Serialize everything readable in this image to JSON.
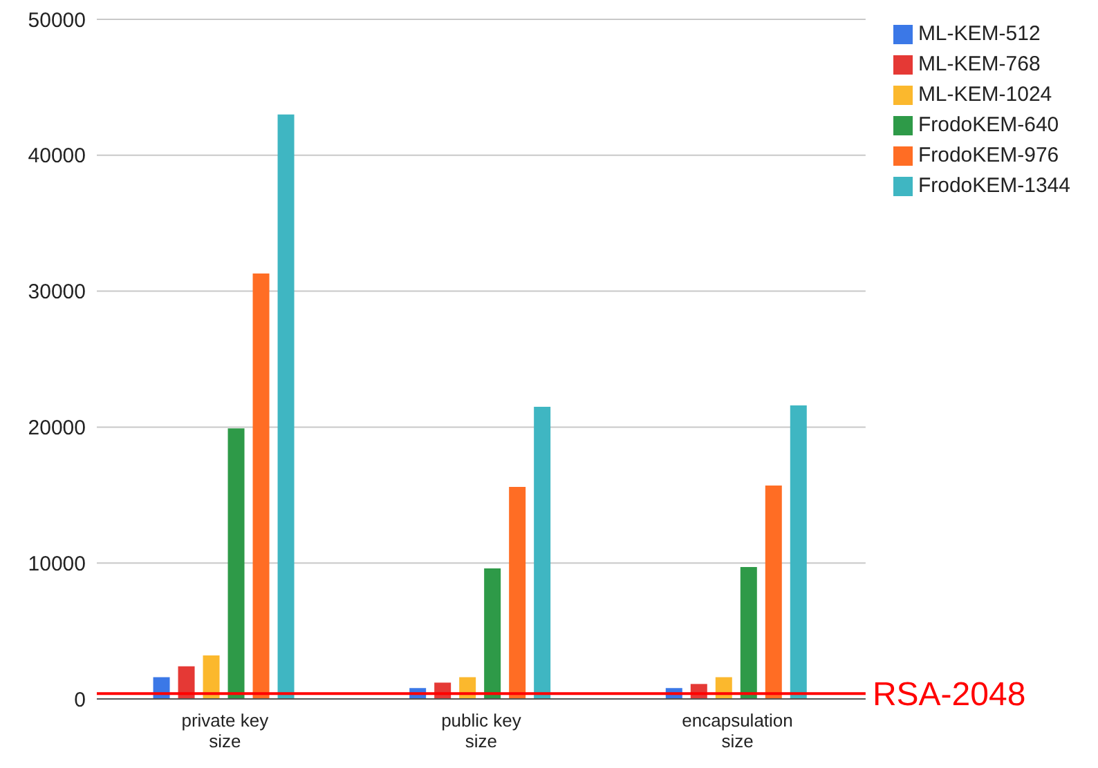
{
  "chart_data": {
    "type": "bar",
    "categories": [
      "private key size",
      "public key size",
      "encapsulation size"
    ],
    "series": [
      {
        "name": "ML-KEM-512",
        "color": "#3b78e7",
        "values": [
          1600,
          800,
          800
        ]
      },
      {
        "name": "ML-KEM-768",
        "color": "#e53935",
        "values": [
          2400,
          1200,
          1100
        ]
      },
      {
        "name": "ML-KEM-1024",
        "color": "#fbb82d",
        "values": [
          3200,
          1600,
          1600
        ]
      },
      {
        "name": "FrodoKEM-640",
        "color": "#2e9a48",
        "values": [
          19900,
          9600,
          9700
        ]
      },
      {
        "name": "FrodoKEM-976",
        "color": "#ff6d24",
        "values": [
          31300,
          15600,
          15700
        ]
      },
      {
        "name": "FrodoKEM-1344",
        "color": "#3fb6c2",
        "values": [
          43000,
          21500,
          21600
        ]
      }
    ],
    "ylim": [
      0,
      50000
    ],
    "yticks": [
      0,
      10000,
      20000,
      30000,
      40000,
      50000
    ],
    "grid": "y",
    "legend": "top right",
    "ref_lines": [
      {
        "axis": "y",
        "value": 400,
        "label": "RSA-2048",
        "color": "#ff0000"
      }
    ]
  }
}
